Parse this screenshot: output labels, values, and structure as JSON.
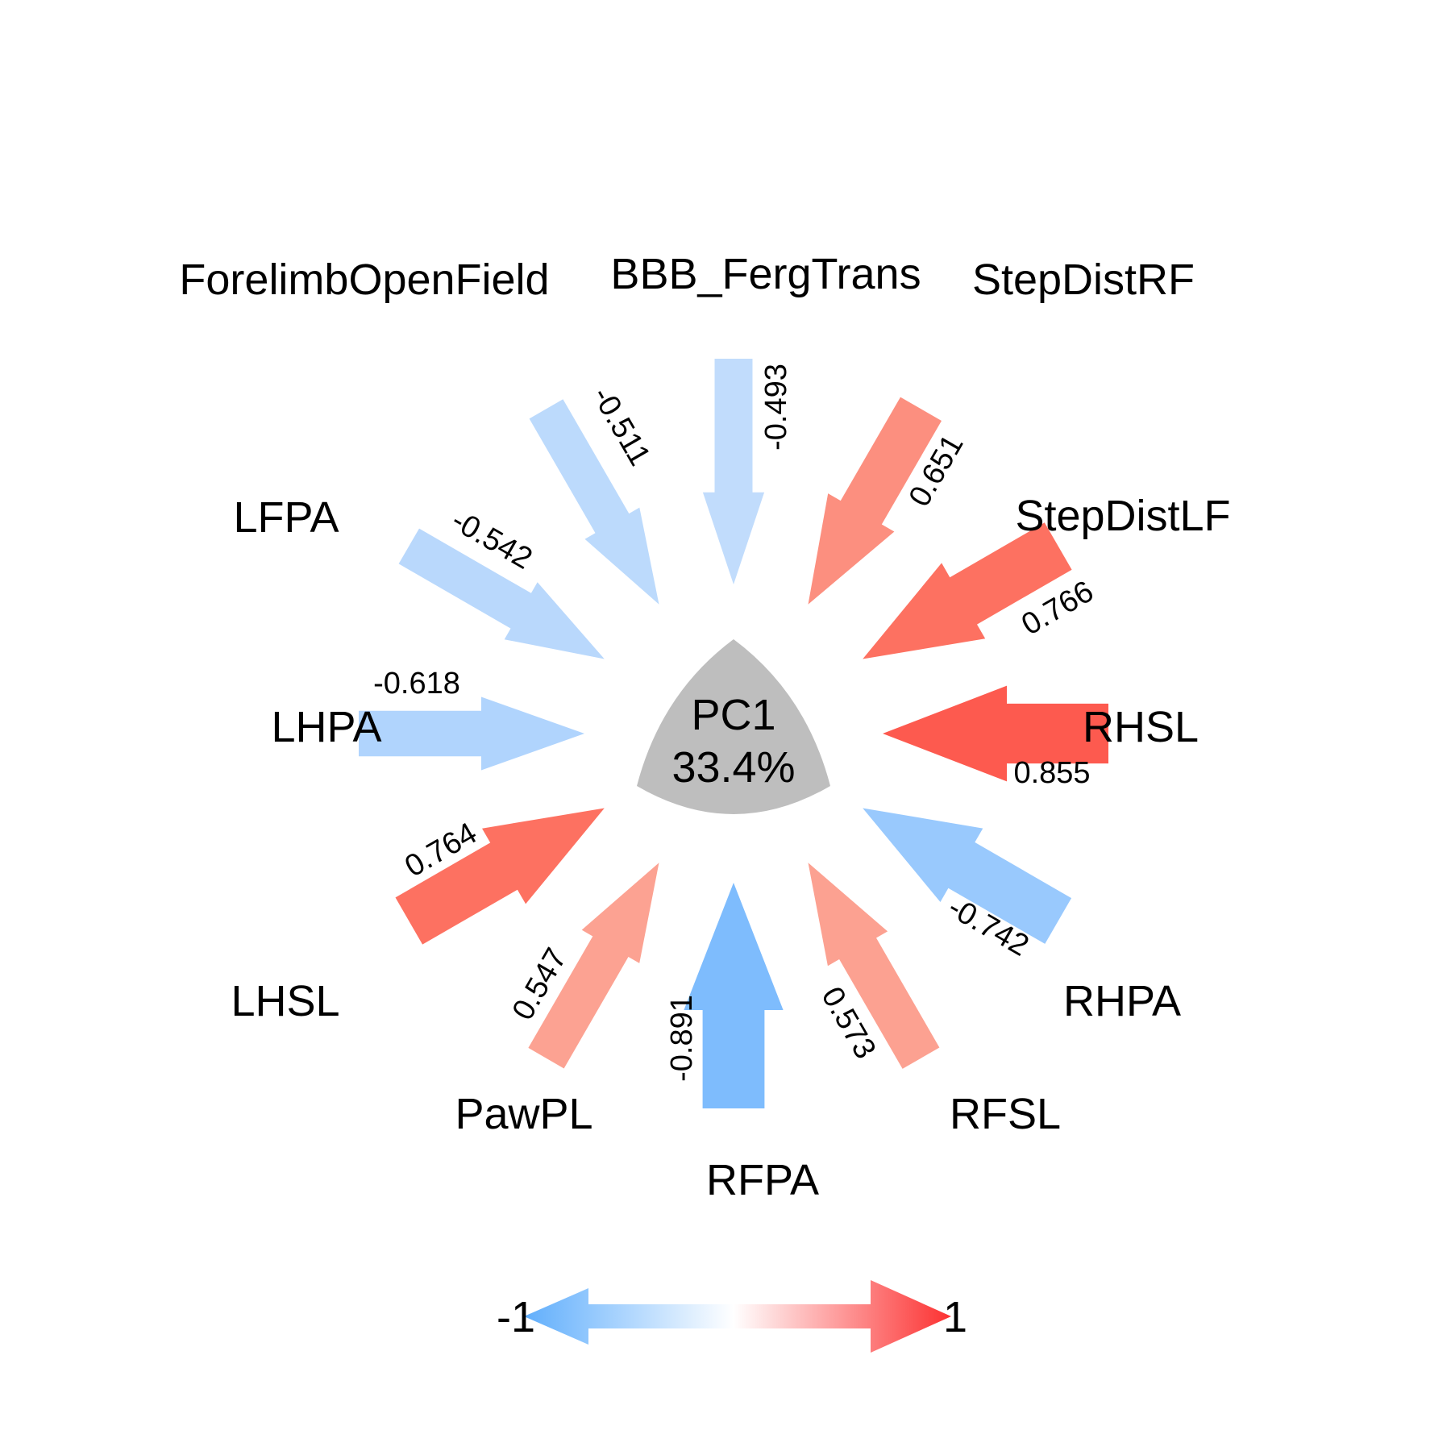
{
  "center": {
    "component": "PC1",
    "variance": "33.4%",
    "fill": "#bebebe"
  },
  "chart_data": {
    "type": "arrow-loadings",
    "component": "PC1",
    "explained_variance": "33.4%",
    "loadings": [
      {
        "variable": "BBB_FergTrans",
        "loading": "-0.493",
        "value": -0.493,
        "color": "#c1dcfc"
      },
      {
        "variable": "StepDistRF",
        "loading": "0.651",
        "value": 0.651,
        "color": "#fc8f7f"
      },
      {
        "variable": "StepDistLF",
        "loading": "0.766",
        "value": 0.766,
        "color": "#fd7161"
      },
      {
        "variable": "RHSL",
        "loading": "0.855",
        "value": 0.855,
        "color": "#fd5a4f"
      },
      {
        "variable": "RHPA",
        "loading": "-0.742",
        "value": -0.742,
        "color": "#99c9fd"
      },
      {
        "variable": "RFSL",
        "loading": "0.573",
        "value": 0.573,
        "color": "#fca191"
      },
      {
        "variable": "RFPA",
        "loading": "-0.891",
        "value": -0.891,
        "color": "#7ebcfd"
      },
      {
        "variable": "PawPL",
        "loading": "0.547",
        "value": 0.547,
        "color": "#fca292"
      },
      {
        "variable": "LHSL",
        "loading": "0.764",
        "value": 0.764,
        "color": "#fd7161"
      },
      {
        "variable": "LHPA",
        "loading": "-0.618",
        "value": -0.618,
        "color": "#b0d4fd"
      },
      {
        "variable": "LFPA",
        "loading": "-0.542",
        "value": -0.542,
        "color": "#b9d8fc"
      },
      {
        "variable": "ForelimbOpenField",
        "loading": "-0.511",
        "value": -0.511,
        "color": "#bcdafc"
      }
    ],
    "color_scale": {
      "min_label": "-1",
      "max_label": "1",
      "negative_color": "#5aabfc",
      "positive_color": "#fc3131",
      "mid_color": "#ffffff"
    }
  }
}
